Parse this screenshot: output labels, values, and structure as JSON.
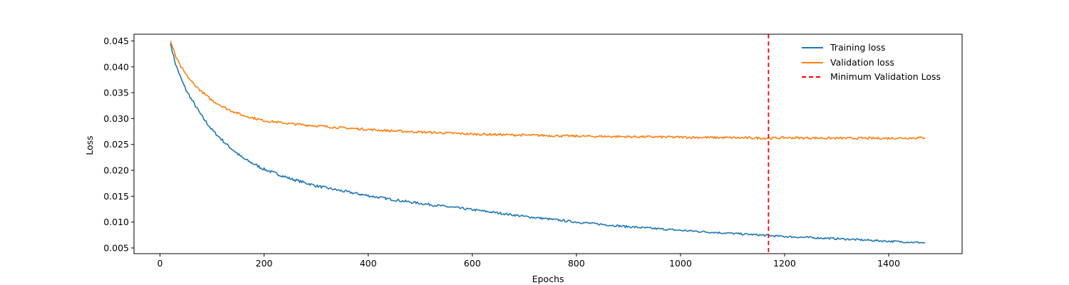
{
  "chart_data": {
    "type": "line",
    "title": "",
    "xlabel": "Epochs",
    "ylabel": "Loss",
    "xlim": [
      -50,
      1541
    ],
    "ylim": [
      0.0039,
      0.0463
    ],
    "xticks": [
      0,
      200,
      400,
      600,
      800,
      1000,
      1200,
      1400
    ],
    "xtick_labels": [
      "0",
      "200",
      "400",
      "600",
      "800",
      "1000",
      "1200",
      "1400"
    ],
    "yticks": [
      0.005,
      0.01,
      0.015,
      0.02,
      0.025,
      0.03,
      0.035,
      0.04,
      0.045
    ],
    "ytick_labels": [
      "0.005",
      "0.010",
      "0.015",
      "0.020",
      "0.025",
      "0.030",
      "0.035",
      "0.040",
      "0.045"
    ],
    "grid": false,
    "legend_position": "top-right",
    "series": [
      {
        "name": "Training loss",
        "color": "#1f77b4",
        "x": [
          20,
          30,
          40,
          50,
          60,
          80,
          100,
          130,
          160,
          200,
          250,
          300,
          350,
          400,
          450,
          500,
          600,
          700,
          800,
          900,
          1000,
          1100,
          1169,
          1200,
          1300,
          1400,
          1470
        ],
        "y": [
          0.0445,
          0.0405,
          0.0378,
          0.0355,
          0.0338,
          0.0305,
          0.0278,
          0.0248,
          0.0223,
          0.0202,
          0.0184,
          0.017,
          0.016,
          0.0151,
          0.0143,
          0.0136,
          0.0124,
          0.0111,
          0.01,
          0.0091,
          0.0084,
          0.0078,
          0.0074,
          0.0072,
          0.0068,
          0.0063,
          0.006
        ]
      },
      {
        "name": "Validation loss",
        "color": "#ff7f0e",
        "x": [
          20,
          30,
          40,
          50,
          60,
          80,
          100,
          130,
          160,
          200,
          250,
          300,
          350,
          400,
          450,
          500,
          600,
          700,
          800,
          900,
          1000,
          1100,
          1169,
          1200,
          1300,
          1400,
          1470
        ],
        "y": [
          0.045,
          0.042,
          0.04,
          0.0385,
          0.0372,
          0.0352,
          0.0335,
          0.0318,
          0.0306,
          0.0296,
          0.029,
          0.0286,
          0.0282,
          0.0279,
          0.0276,
          0.0274,
          0.027,
          0.0268,
          0.0266,
          0.0265,
          0.0264,
          0.0263,
          0.0262,
          0.0263,
          0.0262,
          0.0262,
          0.0263
        ]
      }
    ],
    "vline": {
      "name": "Minimum Validation Loss",
      "x": 1169,
      "color": "#ff0000",
      "style": "dashed"
    }
  }
}
